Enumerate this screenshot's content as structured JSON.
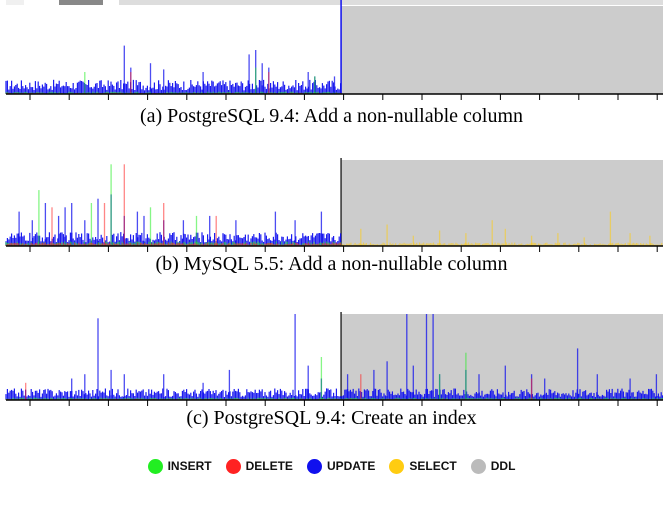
{
  "colors": {
    "insert": "#22ee22",
    "delete": "#ff2222",
    "update": "#1010ee",
    "select": "#ffcc11",
    "ddl": "#bbbbbb",
    "ddl_background": "#cccccc",
    "axis": "#000000"
  },
  "legend": [
    {
      "label": "INSERT",
      "color": "#22ee22"
    },
    {
      "label": "DELETE",
      "color": "#ff2222"
    },
    {
      "label": "UPDATE",
      "color": "#1010ee"
    },
    {
      "label": "SELECT",
      "color": "#ffcc11"
    },
    {
      "label": "DDL",
      "color": "#bbbbbb"
    }
  ],
  "chart_data": [
    {
      "type": "area",
      "caption": "(a) PostgreSQL 9.4: Add a non-nullable column",
      "ddl_start_fraction": 0.51,
      "ddl_end_fraction": 1.0,
      "legend_position": "bottom",
      "grid": false,
      "series": [
        {
          "category": "UPDATE",
          "baseline_level": 0.12,
          "spikes": [
            [
              0.18,
              0.55
            ],
            [
              0.19,
              0.3
            ],
            [
              0.22,
              0.35
            ],
            [
              0.24,
              0.28
            ],
            [
              0.3,
              0.25
            ],
            [
              0.37,
              0.45
            ],
            [
              0.38,
              0.5
            ],
            [
              0.39,
              0.35
            ],
            [
              0.4,
              0.3
            ],
            [
              0.46,
              0.25
            ],
            [
              0.47,
              0.2
            ],
            [
              0.5,
              0.2
            ]
          ]
        },
        {
          "category": "INSERT",
          "baseline_level": 0.02,
          "spikes": [
            [
              0.12,
              0.25
            ],
            [
              0.38,
              0.3
            ],
            [
              0.47,
              0.2
            ]
          ]
        },
        {
          "category": "DELETE",
          "baseline_level": 0.01,
          "spikes": [
            [
              0.19,
              0.25
            ],
            [
              0.4,
              0.25
            ]
          ]
        }
      ]
    },
    {
      "type": "area",
      "caption": "(b) MySQL 5.5: Add a non-nullable column",
      "ddl_start_fraction": 0.51,
      "ddl_end_fraction": 1.0,
      "legend_position": "bottom",
      "grid": false,
      "series": [
        {
          "category": "UPDATE",
          "baseline_level": 0.12,
          "spikes": [
            [
              0.02,
              0.4
            ],
            [
              0.04,
              0.3
            ],
            [
              0.06,
              0.5
            ],
            [
              0.08,
              0.35
            ],
            [
              0.09,
              0.45
            ],
            [
              0.1,
              0.5
            ],
            [
              0.12,
              0.3
            ],
            [
              0.14,
              0.55
            ],
            [
              0.16,
              0.6
            ],
            [
              0.18,
              0.35
            ],
            [
              0.2,
              0.4
            ],
            [
              0.21,
              0.35
            ],
            [
              0.24,
              0.3
            ],
            [
              0.27,
              0.3
            ],
            [
              0.31,
              0.35
            ],
            [
              0.35,
              0.3
            ],
            [
              0.41,
              0.4
            ],
            [
              0.44,
              0.3
            ],
            [
              0.48,
              0.4
            ]
          ]
        },
        {
          "category": "INSERT",
          "baseline_level": 0.04,
          "spikes": [
            [
              0.05,
              0.65
            ],
            [
              0.13,
              0.5
            ],
            [
              0.16,
              0.95
            ],
            [
              0.22,
              0.45
            ],
            [
              0.29,
              0.35
            ]
          ]
        },
        {
          "category": "DELETE",
          "baseline_level": 0.03,
          "spikes": [
            [
              0.07,
              0.45
            ],
            [
              0.15,
              0.5
            ],
            [
              0.18,
              0.95
            ],
            [
              0.24,
              0.5
            ],
            [
              0.32,
              0.35
            ]
          ]
        },
        {
          "category": "SELECT",
          "baseline_level": 0.03,
          "spikes": [
            [
              0.54,
              0.2
            ],
            [
              0.58,
              0.25
            ],
            [
              0.62,
              0.12
            ],
            [
              0.66,
              0.18
            ],
            [
              0.7,
              0.15
            ],
            [
              0.74,
              0.3
            ],
            [
              0.76,
              0.2
            ],
            [
              0.8,
              0.12
            ],
            [
              0.84,
              0.15
            ],
            [
              0.88,
              0.1
            ],
            [
              0.92,
              0.4
            ],
            [
              0.95,
              0.15
            ],
            [
              0.98,
              0.12
            ]
          ]
        }
      ]
    },
    {
      "type": "area",
      "caption": "(c) PostgreSQL 9.4: Create an index",
      "ddl_start_fraction": 0.51,
      "ddl_end_fraction": 1.0,
      "legend_position": "bottom",
      "grid": false,
      "series": [
        {
          "category": "UPDATE",
          "baseline_level": 0.1,
          "spikes": [
            [
              0.1,
              0.25
            ],
            [
              0.12,
              0.3
            ],
            [
              0.14,
              0.95
            ],
            [
              0.16,
              0.35
            ],
            [
              0.18,
              0.3
            ],
            [
              0.24,
              0.3
            ],
            [
              0.3,
              0.2
            ],
            [
              0.34,
              0.35
            ],
            [
              0.44,
              1.0
            ],
            [
              0.46,
              0.4
            ],
            [
              0.48,
              0.25
            ],
            [
              0.52,
              0.3
            ],
            [
              0.56,
              0.35
            ],
            [
              0.58,
              0.45
            ],
            [
              0.61,
              1.0
            ],
            [
              0.62,
              0.4
            ],
            [
              0.64,
              1.0
            ],
            [
              0.65,
              1.0
            ],
            [
              0.66,
              0.3
            ],
            [
              0.7,
              0.35
            ],
            [
              0.72,
              0.3
            ],
            [
              0.76,
              0.4
            ],
            [
              0.8,
              0.3
            ],
            [
              0.82,
              0.25
            ],
            [
              0.87,
              0.6
            ],
            [
              0.9,
              0.3
            ],
            [
              0.95,
              0.25
            ],
            [
              0.99,
              0.3
            ]
          ]
        },
        {
          "category": "INSERT",
          "baseline_level": 0.02,
          "spikes": [
            [
              0.48,
              0.5
            ],
            [
              0.66,
              0.3
            ],
            [
              0.7,
              0.55
            ]
          ]
        },
        {
          "category": "DELETE",
          "baseline_level": 0.01,
          "spikes": [
            [
              0.03,
              0.2
            ],
            [
              0.54,
              0.3
            ],
            [
              0.8,
              0.25
            ]
          ]
        }
      ]
    }
  ]
}
